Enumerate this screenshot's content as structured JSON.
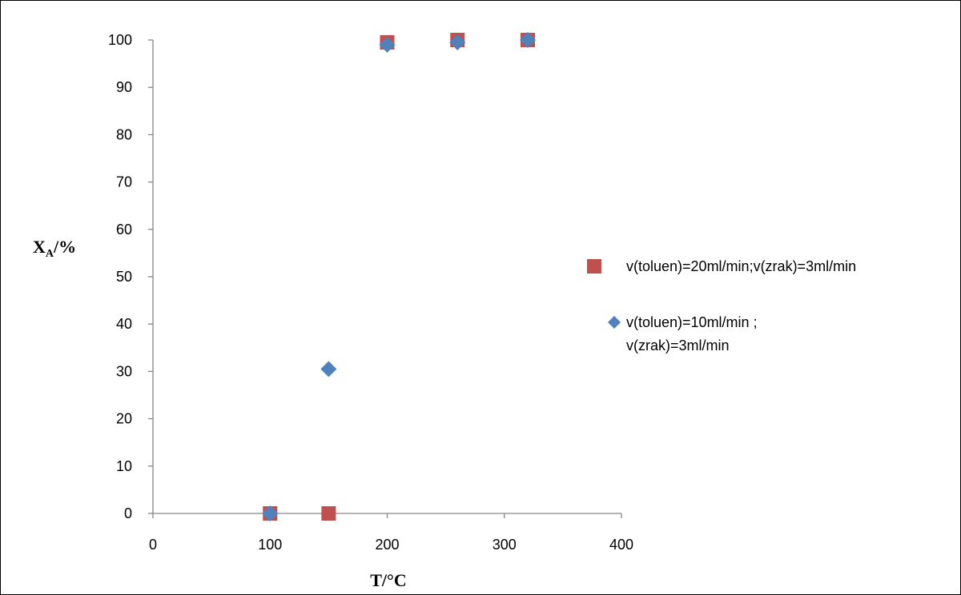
{
  "chart_data": {
    "type": "scatter",
    "xlabel": "T/°C",
    "ylabel": {
      "main": "X",
      "sub": "A",
      "suffix": "/%"
    },
    "xlim": [
      0,
      400
    ],
    "ylim": [
      0,
      100
    ],
    "x_ticks": [
      0,
      100,
      200,
      300,
      400
    ],
    "y_ticks": [
      0,
      10,
      20,
      30,
      40,
      50,
      60,
      70,
      80,
      90,
      100
    ],
    "grid": false,
    "legend_position": "right",
    "series": [
      {
        "name": "v(toluen)=20ml/min;v(zrak)=3ml/min",
        "legend_lines": [
          "v(toluen)=20ml/min;v(zrak)=3ml/min"
        ],
        "marker": "square",
        "color": "#C0504D",
        "points": [
          [
            100,
            0
          ],
          [
            150,
            0
          ],
          [
            200,
            99.5
          ],
          [
            260,
            100
          ],
          [
            320,
            100
          ]
        ]
      },
      {
        "name": "v(toluen)=10ml/min ; v(zrak)=3ml/min",
        "legend_lines": [
          "v(toluen)=10ml/min ;",
          "v(zrak)=3ml/min"
        ],
        "marker": "diamond",
        "color": "#4F81BD",
        "points": [
          [
            100,
            0
          ],
          [
            150,
            30.5
          ],
          [
            200,
            99
          ],
          [
            260,
            99.5
          ],
          [
            320,
            100
          ]
        ]
      }
    ]
  }
}
